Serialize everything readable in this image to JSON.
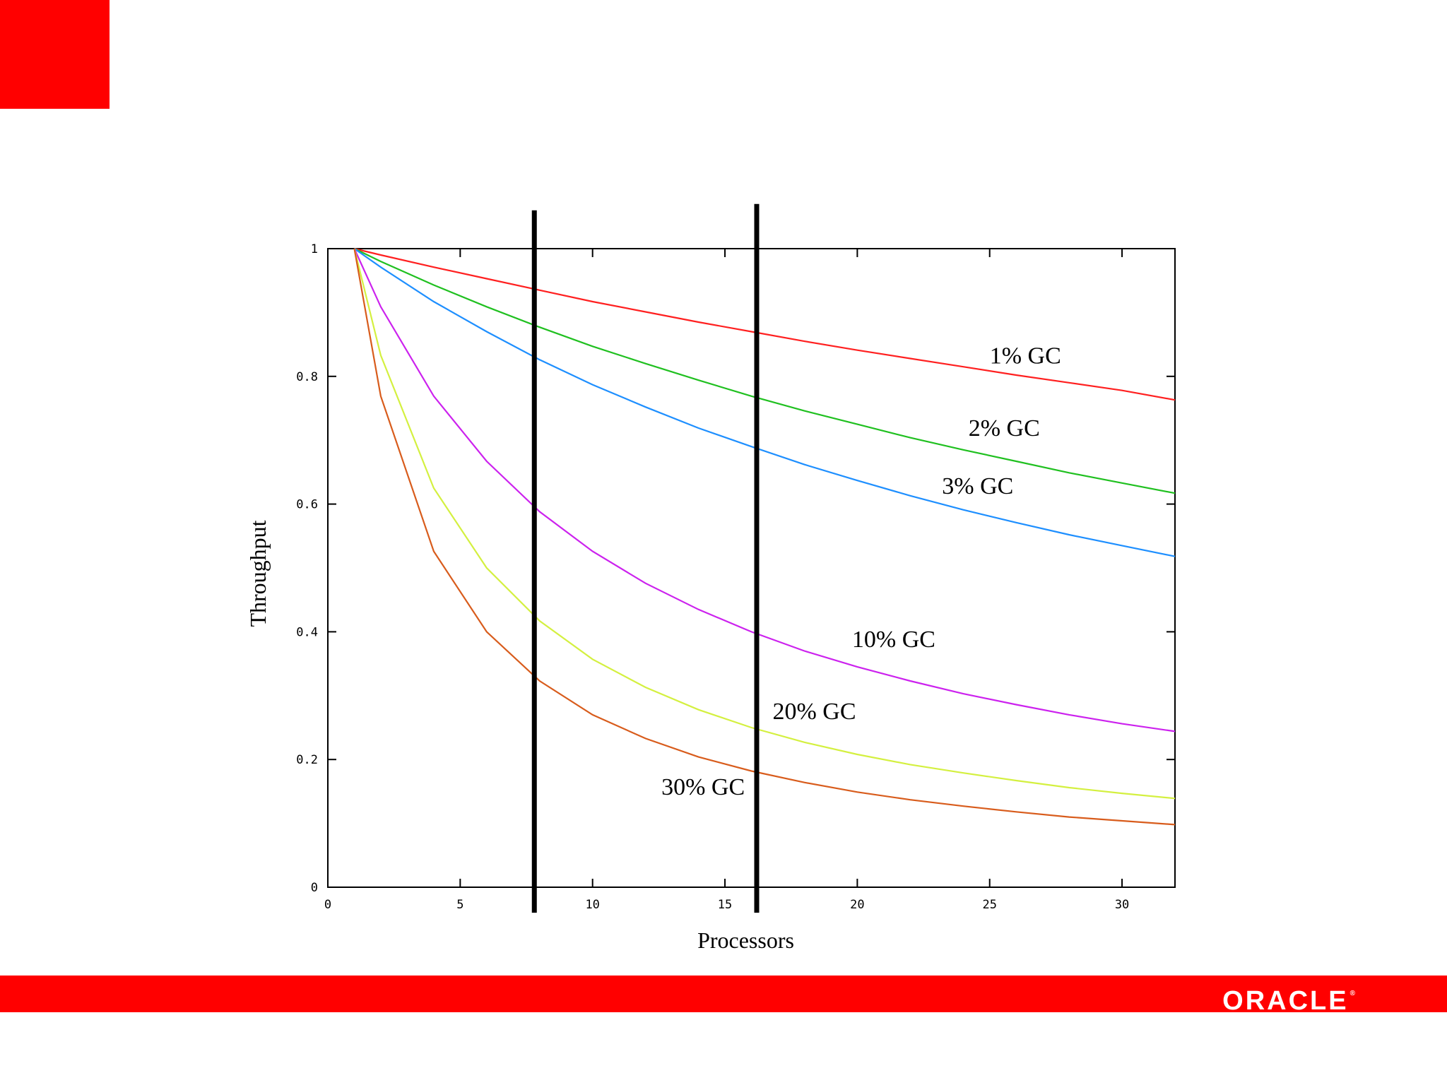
{
  "slide": {
    "accent_color": "#ff0000",
    "logo_text": "ORACLE"
  },
  "chart_data": {
    "type": "line",
    "title": "",
    "xlabel": "Processors",
    "ylabel": "Throughput",
    "xlim": [
      0,
      32
    ],
    "ylim": [
      0,
      1
    ],
    "xticks": [
      0,
      5,
      10,
      15,
      20,
      25,
      30
    ],
    "yticks": [
      0,
      0.2,
      0.4,
      0.6,
      0.8,
      1
    ],
    "ytick_labels": [
      "0",
      "0.2",
      "0.4",
      "0.6",
      "0.8",
      "1"
    ],
    "grid": false,
    "series": [
      {
        "name": "1% GC",
        "color": "#ff2020",
        "label_at": [
          25,
          0.82
        ],
        "x": [
          1,
          2,
          4,
          6,
          8,
          10,
          12,
          14,
          16,
          18,
          20,
          22,
          24,
          26,
          28,
          30,
          32
        ],
        "y": [
          1.0,
          0.99,
          0.971,
          0.953,
          0.935,
          0.917,
          0.901,
          0.885,
          0.87,
          0.855,
          0.841,
          0.828,
          0.815,
          0.802,
          0.79,
          0.778,
          0.763
        ]
      },
      {
        "name": "2% GC",
        "color": "#20c020",
        "label_at": [
          24.2,
          0.707
        ],
        "x": [
          1,
          2,
          4,
          6,
          8,
          10,
          12,
          14,
          16,
          18,
          20,
          22,
          24,
          26,
          28,
          30,
          32
        ],
        "y": [
          1.0,
          0.98,
          0.943,
          0.909,
          0.877,
          0.847,
          0.82,
          0.794,
          0.769,
          0.746,
          0.725,
          0.704,
          0.685,
          0.667,
          0.649,
          0.633,
          0.617
        ]
      },
      {
        "name": "3% GC",
        "color": "#1e8fff",
        "label_at": [
          23.2,
          0.616
        ],
        "x": [
          1,
          2,
          4,
          6,
          8,
          10,
          12,
          14,
          16,
          18,
          20,
          22,
          24,
          26,
          28,
          30,
          32
        ],
        "y": [
          1.0,
          0.971,
          0.917,
          0.87,
          0.826,
          0.787,
          0.752,
          0.719,
          0.69,
          0.662,
          0.637,
          0.613,
          0.591,
          0.571,
          0.552,
          0.535,
          0.518
        ]
      },
      {
        "name": "10% GC",
        "color": "#cc22ee",
        "label_at": [
          19.8,
          0.376
        ],
        "x": [
          1,
          2,
          4,
          6,
          8,
          10,
          12,
          14,
          16,
          18,
          20,
          22,
          24,
          26,
          28,
          30,
          32
        ],
        "y": [
          1.0,
          0.909,
          0.769,
          0.667,
          0.588,
          0.526,
          0.476,
          0.435,
          0.4,
          0.37,
          0.345,
          0.323,
          0.303,
          0.286,
          0.27,
          0.256,
          0.244
        ]
      },
      {
        "name": "20% GC",
        "color": "#d4f040",
        "label_at": [
          16.8,
          0.263
        ],
        "x": [
          1,
          2,
          4,
          6,
          8,
          10,
          12,
          14,
          16,
          18,
          20,
          22,
          24,
          26,
          28,
          30,
          32
        ],
        "y": [
          1.0,
          0.833,
          0.625,
          0.5,
          0.417,
          0.357,
          0.313,
          0.278,
          0.25,
          0.227,
          0.208,
          0.192,
          0.179,
          0.167,
          0.156,
          0.147,
          0.139
        ]
      },
      {
        "name": "30% GC",
        "color": "#d85c1c",
        "label_at": [
          12.6,
          0.145
        ],
        "x": [
          1,
          2,
          4,
          6,
          8,
          10,
          12,
          14,
          16,
          18,
          20,
          22,
          24,
          26,
          28,
          30,
          32
        ],
        "y": [
          1.0,
          0.769,
          0.526,
          0.4,
          0.323,
          0.27,
          0.233,
          0.204,
          0.182,
          0.164,
          0.149,
          0.137,
          0.127,
          0.118,
          0.11,
          0.104,
          0.098
        ]
      }
    ],
    "vertical_markers": [
      {
        "x": 7.8,
        "y_from": -0.04,
        "y_to": 1.06
      },
      {
        "x": 16.2,
        "y_from": -0.04,
        "y_to": 1.07
      }
    ]
  }
}
